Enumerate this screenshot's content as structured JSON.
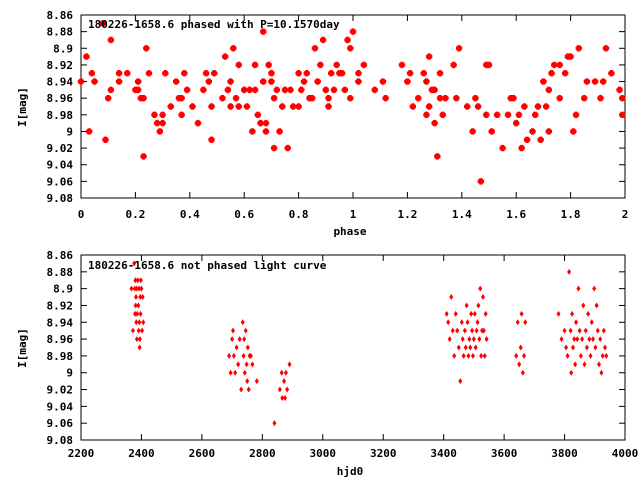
{
  "chart_data": [
    {
      "type": "scatter",
      "title": "180226-1658.6 phased with P=10.1570day",
      "xlabel": "phase",
      "ylabel": "I[mag]",
      "xlim": [
        0,
        2
      ],
      "ylim": [
        9.08,
        8.86
      ],
      "y_inverted": true,
      "xticks": [
        "0",
        "0.2",
        "0.4",
        "0.6",
        "0.8",
        "1",
        "1.2",
        "1.4",
        "1.6",
        "1.8",
        "2"
      ],
      "yticks": [
        "8.86",
        "8.88",
        "8.9",
        "8.92",
        "8.94",
        "8.96",
        "8.98",
        "9",
        "9.02",
        "9.04",
        "9.06",
        "9.08"
      ],
      "grid": false,
      "marker_color": "#ff0000",
      "points": [
        [
          0.0,
          8.94
        ],
        [
          0.02,
          8.91
        ],
        [
          0.03,
          9.0
        ],
        [
          0.04,
          8.93
        ],
        [
          0.05,
          8.94
        ],
        [
          0.08,
          8.87
        ],
        [
          0.09,
          9.01
        ],
        [
          0.1,
          8.96
        ],
        [
          0.11,
          8.89
        ],
        [
          0.11,
          8.95
        ],
        [
          0.14,
          8.94
        ],
        [
          0.14,
          8.93
        ],
        [
          0.17,
          8.93
        ],
        [
          0.2,
          8.95
        ],
        [
          0.21,
          8.95
        ],
        [
          0.21,
          8.94
        ],
        [
          0.22,
          8.96
        ],
        [
          0.23,
          8.96
        ],
        [
          0.23,
          9.03
        ],
        [
          0.24,
          8.9
        ],
        [
          0.25,
          8.93
        ],
        [
          0.27,
          8.98
        ],
        [
          0.28,
          8.99
        ],
        [
          0.29,
          9.0
        ],
        [
          0.3,
          8.99
        ],
        [
          0.3,
          8.98
        ],
        [
          0.31,
          8.93
        ],
        [
          0.33,
          8.97
        ],
        [
          0.35,
          8.94
        ],
        [
          0.36,
          8.96
        ],
        [
          0.37,
          8.96
        ],
        [
          0.37,
          8.98
        ],
        [
          0.38,
          8.93
        ],
        [
          0.39,
          8.95
        ],
        [
          0.41,
          8.97
        ],
        [
          0.43,
          8.99
        ],
        [
          0.45,
          8.95
        ],
        [
          0.46,
          8.93
        ],
        [
          0.47,
          8.94
        ],
        [
          0.48,
          8.97
        ],
        [
          0.48,
          9.01
        ],
        [
          0.49,
          8.93
        ],
        [
          0.52,
          8.96
        ],
        [
          0.53,
          8.91
        ],
        [
          0.54,
          8.95
        ],
        [
          0.55,
          8.94
        ],
        [
          0.55,
          8.97
        ],
        [
          0.56,
          8.9
        ],
        [
          0.57,
          8.96
        ],
        [
          0.58,
          8.92
        ],
        [
          0.58,
          8.97
        ],
        [
          0.6,
          8.95
        ],
        [
          0.61,
          8.97
        ],
        [
          0.62,
          8.95
        ],
        [
          0.63,
          9.0
        ],
        [
          0.64,
          8.92
        ],
        [
          0.64,
          8.95
        ],
        [
          0.65,
          8.98
        ],
        [
          0.66,
          8.99
        ],
        [
          0.67,
          8.88
        ],
        [
          0.67,
          8.94
        ],
        [
          0.68,
          8.99
        ],
        [
          0.68,
          9.0
        ],
        [
          0.69,
          8.92
        ],
        [
          0.7,
          8.93
        ],
        [
          0.7,
          8.94
        ],
        [
          0.71,
          8.96
        ],
        [
          0.71,
          9.02
        ],
        [
          0.72,
          8.95
        ],
        [
          0.73,
          9.0
        ],
        [
          0.74,
          8.97
        ],
        [
          0.75,
          8.95
        ],
        [
          0.76,
          9.02
        ],
        [
          0.77,
          8.95
        ],
        [
          0.78,
          8.97
        ],
        [
          0.8,
          8.93
        ],
        [
          0.8,
          8.97
        ],
        [
          0.81,
          8.95
        ],
        [
          0.82,
          8.94
        ],
        [
          0.83,
          8.93
        ],
        [
          0.84,
          8.96
        ],
        [
          0.85,
          8.96
        ],
        [
          0.86,
          8.9
        ],
        [
          0.87,
          8.94
        ],
        [
          0.88,
          8.92
        ],
        [
          0.89,
          8.89
        ],
        [
          0.9,
          8.95
        ],
        [
          0.91,
          8.97
        ],
        [
          0.91,
          8.96
        ],
        [
          0.92,
          8.93
        ],
        [
          0.93,
          8.95
        ],
        [
          0.94,
          8.92
        ],
        [
          0.95,
          8.93
        ],
        [
          0.96,
          8.93
        ],
        [
          0.97,
          8.95
        ],
        [
          0.98,
          8.89
        ],
        [
          0.99,
          8.9
        ],
        [
          0.99,
          8.96
        ],
        [
          1.0,
          8.88
        ],
        [
          1.02,
          8.93
        ],
        [
          1.02,
          8.94
        ],
        [
          1.04,
          8.92
        ],
        [
          1.08,
          8.95
        ],
        [
          1.11,
          8.94
        ],
        [
          1.12,
          8.96
        ],
        [
          1.18,
          8.92
        ],
        [
          1.2,
          8.94
        ],
        [
          1.21,
          8.93
        ],
        [
          1.22,
          8.97
        ],
        [
          1.24,
          8.96
        ],
        [
          1.26,
          8.93
        ],
        [
          1.27,
          8.94
        ],
        [
          1.27,
          8.98
        ],
        [
          1.28,
          8.91
        ],
        [
          1.28,
          8.97
        ],
        [
          1.29,
          8.95
        ],
        [
          1.3,
          8.95
        ],
        [
          1.3,
          8.99
        ],
        [
          1.31,
          9.03
        ],
        [
          1.32,
          8.93
        ],
        [
          1.32,
          8.96
        ],
        [
          1.33,
          8.98
        ],
        [
          1.34,
          8.96
        ],
        [
          1.37,
          8.92
        ],
        [
          1.38,
          8.96
        ],
        [
          1.39,
          8.9
        ],
        [
          1.42,
          8.97
        ],
        [
          1.44,
          9.0
        ],
        [
          1.45,
          8.96
        ],
        [
          1.46,
          8.97
        ],
        [
          1.47,
          9.06
        ],
        [
          1.49,
          8.92
        ],
        [
          1.49,
          8.98
        ],
        [
          1.51,
          9.0
        ],
        [
          1.5,
          8.92
        ],
        [
          1.53,
          8.98
        ],
        [
          1.55,
          9.02
        ],
        [
          1.57,
          8.98
        ],
        [
          1.58,
          8.96
        ],
        [
          1.59,
          8.96
        ],
        [
          1.6,
          8.99
        ],
        [
          1.61,
          8.98
        ],
        [
          1.62,
          9.02
        ],
        [
          1.63,
          8.97
        ],
        [
          1.64,
          9.01
        ],
        [
          1.66,
          9.0
        ],
        [
          1.67,
          8.98
        ],
        [
          1.68,
          8.97
        ],
        [
          1.69,
          9.01
        ],
        [
          1.7,
          8.94
        ],
        [
          1.71,
          8.97
        ],
        [
          1.72,
          9.0
        ],
        [
          1.72,
          8.95
        ],
        [
          1.73,
          8.93
        ],
        [
          1.74,
          8.92
        ],
        [
          1.76,
          8.92
        ],
        [
          1.76,
          8.96
        ],
        [
          1.78,
          8.93
        ],
        [
          1.79,
          8.91
        ],
        [
          1.8,
          8.91
        ],
        [
          1.81,
          9.0
        ],
        [
          1.82,
          8.98
        ],
        [
          1.83,
          8.9
        ],
        [
          1.85,
          8.96
        ],
        [
          1.86,
          8.94
        ],
        [
          1.89,
          8.94
        ],
        [
          1.91,
          8.96
        ],
        [
          1.92,
          8.94
        ],
        [
          1.93,
          8.9
        ],
        [
          1.95,
          8.93
        ],
        [
          1.98,
          8.95
        ],
        [
          1.99,
          8.98
        ],
        [
          1.99,
          8.96
        ]
      ]
    },
    {
      "type": "scatter",
      "title": "180226-1658.6 not phased light curve",
      "xlabel": "hjd0",
      "ylabel": "I[mag]",
      "xlim": [
        2200,
        4000
      ],
      "ylim": [
        9.08,
        8.86
      ],
      "y_inverted": true,
      "xticks": [
        "2200",
        "2400",
        "2600",
        "2800",
        "3000",
        "3200",
        "3400",
        "3600",
        "3800",
        "4000"
      ],
      "yticks": [
        "8.86",
        "8.88",
        "8.9",
        "8.92",
        "8.94",
        "8.96",
        "8.98",
        "9",
        "9.02",
        "9.04",
        "9.06",
        "9.08"
      ],
      "grid": false,
      "marker_color": "#ff0000",
      "points": [
        [
          2367,
          8.9
        ],
        [
          2372,
          8.95
        ],
        [
          2376,
          8.87
        ],
        [
          2378,
          8.9
        ],
        [
          2379,
          8.93
        ],
        [
          2380,
          8.89
        ],
        [
          2381,
          8.92
        ],
        [
          2382,
          8.91
        ],
        [
          2383,
          8.94
        ],
        [
          2384,
          8.9
        ],
        [
          2385,
          8.96
        ],
        [
          2386,
          8.93
        ],
        [
          2388,
          8.89
        ],
        [
          2390,
          8.92
        ],
        [
          2391,
          8.95
        ],
        [
          2392,
          8.9
        ],
        [
          2393,
          8.94
        ],
        [
          2394,
          8.97
        ],
        [
          2395,
          8.96
        ],
        [
          2396,
          8.91
        ],
        [
          2397,
          8.93
        ],
        [
          2398,
          8.89
        ],
        [
          2400,
          8.9
        ],
        [
          2402,
          8.95
        ],
        [
          2404,
          8.91
        ],
        [
          2406,
          8.94
        ],
        [
          2690,
          8.98
        ],
        [
          2695,
          9.0
        ],
        [
          2700,
          8.96
        ],
        [
          2703,
          8.95
        ],
        [
          2706,
          8.98
        ],
        [
          2710,
          9.0
        ],
        [
          2715,
          8.97
        ],
        [
          2720,
          8.99
        ],
        [
          2725,
          8.96
        ],
        [
          2730,
          9.02
        ],
        [
          2735,
          8.94
        ],
        [
          2738,
          8.98
        ],
        [
          2740,
          8.96
        ],
        [
          2742,
          9.0
        ],
        [
          2745,
          8.95
        ],
        [
          2748,
          8.99
        ],
        [
          2750,
          9.01
        ],
        [
          2752,
          8.97
        ],
        [
          2755,
          9.02
        ],
        [
          2758,
          8.98
        ],
        [
          2762,
          8.98
        ],
        [
          2767,
          8.99
        ],
        [
          2782,
          9.01
        ],
        [
          2840,
          9.06
        ],
        [
          2858,
          9.02
        ],
        [
          2864,
          9.0
        ],
        [
          2866,
          9.03
        ],
        [
          2872,
          9.01
        ],
        [
          2875,
          9.03
        ],
        [
          2878,
          9.0
        ],
        [
          2882,
          9.02
        ],
        [
          2890,
          8.99
        ],
        [
          3410,
          8.93
        ],
        [
          3415,
          8.94
        ],
        [
          3420,
          8.96
        ],
        [
          3425,
          8.91
        ],
        [
          3430,
          8.95
        ],
        [
          3435,
          8.98
        ],
        [
          3440,
          8.93
        ],
        [
          3445,
          8.95
        ],
        [
          3450,
          8.97
        ],
        [
          3455,
          9.01
        ],
        [
          3460,
          8.94
        ],
        [
          3463,
          8.96
        ],
        [
          3466,
          8.98
        ],
        [
          3470,
          8.95
        ],
        [
          3473,
          8.97
        ],
        [
          3476,
          8.92
        ],
        [
          3479,
          8.94
        ],
        [
          3482,
          8.98
        ],
        [
          3485,
          8.96
        ],
        [
          3488,
          8.97
        ],
        [
          3491,
          8.93
        ],
        [
          3494,
          8.95
        ],
        [
          3497,
          8.98
        ],
        [
          3500,
          8.96
        ],
        [
          3503,
          8.93
        ],
        [
          3506,
          8.97
        ],
        [
          3509,
          8.95
        ],
        [
          3512,
          8.94
        ],
        [
          3515,
          8.92
        ],
        [
          3518,
          8.96
        ],
        [
          3521,
          8.9
        ],
        [
          3524,
          8.98
        ],
        [
          3527,
          8.95
        ],
        [
          3530,
          8.91
        ],
        [
          3533,
          8.95
        ],
        [
          3536,
          8.98
        ],
        [
          3539,
          8.93
        ],
        [
          3542,
          8.96
        ],
        [
          3640,
          8.98
        ],
        [
          3645,
          8.94
        ],
        [
          3650,
          8.99
        ],
        [
          3655,
          8.97
        ],
        [
          3658,
          8.93
        ],
        [
          3662,
          9.0
        ],
        [
          3666,
          8.98
        ],
        [
          3670,
          8.94
        ],
        [
          3780,
          8.93
        ],
        [
          3790,
          8.96
        ],
        [
          3800,
          8.95
        ],
        [
          3805,
          8.97
        ],
        [
          3810,
          8.98
        ],
        [
          3815,
          8.88
        ],
        [
          3820,
          8.95
        ],
        [
          3822,
          9.0
        ],
        [
          3825,
          8.93
        ],
        [
          3828,
          8.97
        ],
        [
          3832,
          8.96
        ],
        [
          3835,
          8.99
        ],
        [
          3838,
          8.94
        ],
        [
          3842,
          8.96
        ],
        [
          3846,
          8.9
        ],
        [
          3850,
          8.95
        ],
        [
          3854,
          8.98
        ],
        [
          3858,
          8.96
        ],
        [
          3862,
          8.92
        ],
        [
          3866,
          8.99
        ],
        [
          3870,
          8.95
        ],
        [
          3874,
          8.97
        ],
        [
          3878,
          8.93
        ],
        [
          3882,
          8.96
        ],
        [
          3886,
          8.98
        ],
        [
          3890,
          8.94
        ],
        [
          3894,
          8.96
        ],
        [
          3898,
          8.9
        ],
        [
          3902,
          8.97
        ],
        [
          3906,
          8.92
        ],
        [
          3910,
          8.95
        ],
        [
          3914,
          8.99
        ],
        [
          3918,
          8.96
        ],
        [
          3922,
          9.0
        ],
        [
          3926,
          8.98
        ],
        [
          3930,
          8.95
        ],
        [
          3934,
          8.97
        ],
        [
          3938,
          8.98
        ]
      ]
    }
  ]
}
